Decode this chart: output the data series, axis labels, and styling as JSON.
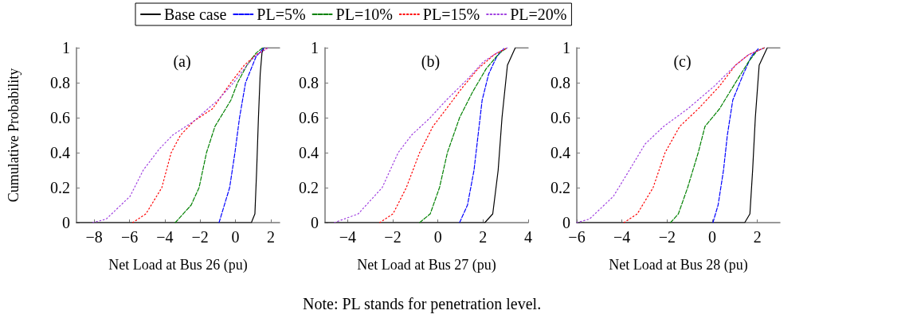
{
  "chart_data": [
    {
      "type": "line",
      "title": "(a)",
      "xlabel": "Net Load at Bus 26 (pu)",
      "ylabel": "Cumulative Probability",
      "xlim": [
        -9,
        2.5
      ],
      "xticks": [
        -8,
        -6,
        -4,
        -2,
        0,
        2
      ],
      "ylim": [
        0,
        1
      ],
      "yticks": [
        0,
        0.2,
        0.4,
        0.6,
        0.8,
        1
      ],
      "grid": false,
      "legend": "top",
      "marker": "none",
      "annotations": [
        "Note: PL stands for penetration level."
      ],
      "series": [
        {
          "name": "Base case",
          "color": "#000000",
          "line_style": "solid",
          "x": [
            -9,
            0.9,
            1.1,
            1.2,
            1.3,
            1.4,
            1.5,
            1.6,
            2.5
          ],
          "values": [
            0,
            0,
            0.05,
            0.3,
            0.6,
            0.85,
            0.97,
            1,
            1
          ]
        },
        {
          "name": "PL=5%",
          "color": "#0000ff",
          "line_style": "dashed",
          "x": [
            -0.93,
            -0.33,
            -0.03,
            0.23,
            0.57,
            1.17,
            1.62
          ],
          "values": [
            0,
            0.2,
            0.4,
            0.6,
            0.8,
            0.95,
            1
          ]
        },
        {
          "name": "PL=10%",
          "color": "#008000",
          "line_style": "dashed",
          "x": [
            -3.41,
            -2.51,
            -2.06,
            -1.64,
            -1.16,
            -0.26,
            0.12,
            0.65,
            1.17,
            1.55
          ],
          "values": [
            0,
            0.1,
            0.2,
            0.4,
            0.55,
            0.7,
            0.8,
            0.9,
            0.97,
            1
          ]
        },
        {
          "name": "PL=15%",
          "color": "#ff0000",
          "line_style": "dotted",
          "x": [
            -5.82,
            -5.07,
            -4.17,
            -3.64,
            -3.11,
            -2.36,
            -1.31,
            -0.26,
            0.5,
            1.17,
            1.85
          ],
          "values": [
            0,
            0.05,
            0.2,
            0.4,
            0.5,
            0.58,
            0.65,
            0.8,
            0.9,
            0.96,
            1
          ]
        },
        {
          "name": "PL=20%",
          "color": "#a040e0",
          "line_style": "dotted",
          "x": [
            -8.08,
            -7.32,
            -5.97,
            -5.22,
            -4.32,
            -3.56,
            -2.36,
            -1.0,
            -0.11,
            0.65,
            1.1,
            1.85
          ],
          "values": [
            0,
            0.02,
            0.15,
            0.3,
            0.42,
            0.5,
            0.58,
            0.7,
            0.8,
            0.9,
            0.95,
            1
          ]
        }
      ]
    },
    {
      "type": "line",
      "title": "(b)",
      "xlabel": "Net Load at Bus 27 (pu)",
      "xlim": [
        -5,
        4
      ],
      "xticks": [
        -4,
        -2,
        0,
        2,
        4
      ],
      "ylim": [
        0,
        1
      ],
      "yticks": [
        0,
        0.2,
        0.4,
        0.6,
        0.8,
        1
      ],
      "grid": false,
      "marker": "none",
      "series": [
        {
          "color": "#000000",
          "line_style": "solid",
          "x": [
            -5,
            2.08,
            2.43,
            2.67,
            2.84,
            3.08,
            3.43,
            4
          ],
          "values": [
            0,
            0,
            0.05,
            0.3,
            0.6,
            0.9,
            1,
            1
          ]
        },
        {
          "color": "#0000ff",
          "line_style": "dashed",
          "x": [
            0.96,
            1.31,
            1.6,
            1.78,
            1.96,
            2.25,
            2.61,
            2.96
          ],
          "values": [
            0,
            0.1,
            0.3,
            0.5,
            0.7,
            0.85,
            0.95,
            1
          ]
        },
        {
          "color": "#008000",
          "line_style": "dashed",
          "x": [
            -0.81,
            -0.34,
            0.07,
            0.42,
            0.96,
            1.55,
            2.14,
            2.73,
            3.08
          ],
          "values": [
            0,
            0.05,
            0.2,
            0.4,
            0.6,
            0.75,
            0.88,
            0.97,
            1
          ]
        },
        {
          "color": "#ff0000",
          "line_style": "dotted",
          "x": [
            -2.58,
            -1.99,
            -1.4,
            -0.81,
            -0.22,
            0.37,
            1.07,
            1.78,
            2.49,
            3.08
          ],
          "values": [
            0,
            0.05,
            0.2,
            0.4,
            0.55,
            0.65,
            0.77,
            0.88,
            0.96,
            1
          ]
        },
        {
          "color": "#a040e0",
          "line_style": "dotted",
          "x": [
            -4.59,
            -3.53,
            -2.47,
            -1.76,
            -1.17,
            -0.34,
            0.37,
            1.31,
            2.02,
            2.61,
            3.08
          ],
          "values": [
            0,
            0.05,
            0.2,
            0.4,
            0.5,
            0.6,
            0.7,
            0.82,
            0.92,
            0.97,
            1
          ]
        }
      ]
    },
    {
      "type": "line",
      "title": "(c)",
      "xlabel": "Net Load at Bus 28 (pu)",
      "xlim": [
        -6,
        3
      ],
      "xticks": [
        -6,
        -4,
        -2,
        0,
        2
      ],
      "ylim": [
        0,
        1
      ],
      "yticks": [
        0,
        0.2,
        0.4,
        0.6,
        0.8,
        1
      ],
      "grid": false,
      "marker": "none",
      "series": [
        {
          "color": "#000000",
          "line_style": "solid",
          "x": [
            -6,
            1.44,
            1.67,
            1.79,
            1.91,
            2.08,
            2.44,
            3
          ],
          "values": [
            0,
            0,
            0.05,
            0.3,
            0.6,
            0.9,
            1,
            1
          ]
        },
        {
          "color": "#0000ff",
          "line_style": "dashed",
          "x": [
            0.03,
            0.26,
            0.5,
            0.67,
            0.91,
            1.38,
            1.73,
            2.08
          ],
          "values": [
            0,
            0.1,
            0.3,
            0.5,
            0.7,
            0.85,
            0.95,
            1
          ]
        },
        {
          "color": "#008000",
          "line_style": "dashed",
          "x": [
            -1.85,
            -1.5,
            -1.09,
            -0.62,
            -0.32,
            0.32,
            1.03,
            1.61,
            1.97,
            2.32
          ],
          "values": [
            0,
            0.05,
            0.2,
            0.4,
            0.55,
            0.65,
            0.8,
            0.92,
            0.98,
            1
          ]
        },
        {
          "color": "#ff0000",
          "line_style": "dotted",
          "x": [
            -3.91,
            -3.32,
            -2.62,
            -2.09,
            -1.44,
            -0.62,
            0.32,
            1.03,
            1.61,
            2.32
          ],
          "values": [
            0,
            0.05,
            0.2,
            0.4,
            0.55,
            0.65,
            0.78,
            0.9,
            0.96,
            1
          ]
        },
        {
          "color": "#a040e0",
          "line_style": "dotted",
          "x": [
            -6,
            -5.44,
            -4.38,
            -3.67,
            -2.97,
            -2.15,
            -1.09,
            0.09,
            1.03,
            1.61,
            2.32
          ],
          "values": [
            0,
            0.02,
            0.15,
            0.3,
            0.45,
            0.55,
            0.65,
            0.78,
            0.9,
            0.96,
            1
          ]
        }
      ]
    }
  ]
}
